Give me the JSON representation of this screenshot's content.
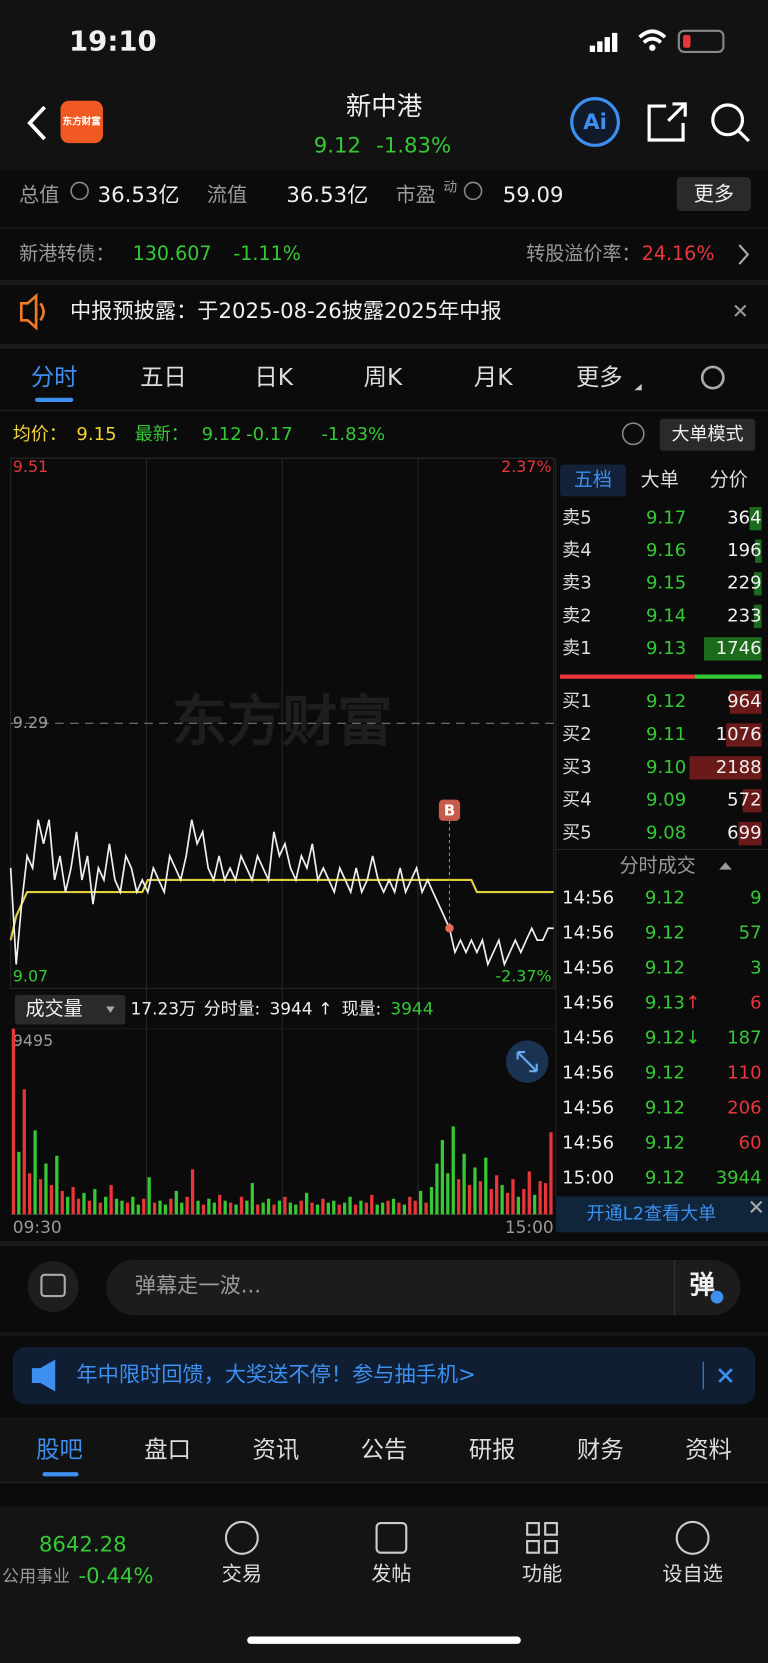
{
  "status": {
    "time": "19:10"
  },
  "header": {
    "logo": "东方财富",
    "title": "新中港",
    "price": "9.12",
    "change": "-1.83%",
    "ai": "Ai"
  },
  "stats": {
    "items": [
      {
        "label": "总值",
        "value": "36.53亿"
      },
      {
        "label": "流值",
        "value": "36.53亿"
      },
      {
        "label": "市盈",
        "sup": "动",
        "value": "59.09"
      }
    ],
    "more": "更多"
  },
  "bond": {
    "label": "新港转债：",
    "price": "130.607",
    "change": "-1.11%",
    "premium_label": "转股溢价率：",
    "premium": "24.16%"
  },
  "notice": {
    "text": "中报预披露：于2025-08-26披露2025年中报"
  },
  "tabs": [
    "分时",
    "五日",
    "日K",
    "周K",
    "月K",
    "更多"
  ],
  "chart_header": {
    "avg_label": "均价：",
    "avg": "9.15",
    "latest_label": "最新：",
    "latest": "9.12",
    "change": "-0.17",
    "pct": "-1.83%",
    "mode": "大单模式"
  },
  "chart_data": {
    "type": "line",
    "watermark": "东方财富",
    "ylim": [
      9.07,
      9.51
    ],
    "yticks": [
      9.07,
      9.29,
      9.51
    ],
    "pct_labels": [
      "2.37%",
      "-2.37%"
    ],
    "x_labels": [
      "09:30",
      "15:00"
    ],
    "annotation": "B",
    "price_color": "#f0f0f0",
    "avg_color": "#e2cf3c",
    "price_values": [
      9.17,
      9.09,
      9.14,
      9.18,
      9.17,
      9.21,
      9.19,
      9.21,
      9.16,
      9.18,
      9.15,
      9.17,
      9.2,
      9.16,
      9.18,
      9.14,
      9.17,
      9.16,
      9.19,
      9.16,
      9.15,
      9.18,
      9.17,
      9.15,
      9.16,
      9.15,
      9.17,
      9.16,
      9.15,
      9.18,
      9.17,
      9.16,
      9.18,
      9.21,
      9.19,
      9.2,
      9.17,
      9.16,
      9.18,
      9.16,
      9.17,
      9.16,
      9.18,
      9.17,
      9.16,
      9.18,
      9.17,
      9.16,
      9.2,
      9.18,
      9.19,
      9.17,
      9.16,
      9.18,
      9.17,
      9.19,
      9.16,
      9.17,
      9.16,
      9.15,
      9.17,
      9.16,
      9.15,
      9.17,
      9.15,
      9.16,
      9.18,
      9.16,
      9.15,
      9.16,
      9.15,
      9.17,
      9.15,
      9.16,
      9.17,
      9.15,
      9.16,
      9.15,
      9.14,
      9.13,
      9.12,
      9.1,
      9.11,
      9.1,
      9.11,
      9.1,
      9.11,
      9.09,
      9.1,
      9.11,
      9.09,
      9.1,
      9.11,
      9.1,
      9.11,
      9.12,
      9.11,
      9.11,
      9.12,
      9.12
    ],
    "avg_values": [
      9.11,
      9.13,
      9.14,
      9.15,
      9.15,
      9.15,
      9.15,
      9.15,
      9.15,
      9.15,
      9.15,
      9.15,
      9.15,
      9.15,
      9.15,
      9.15,
      9.15,
      9.15,
      9.15,
      9.15,
      9.15,
      9.15,
      9.15,
      9.15,
      9.15,
      9.16,
      9.16,
      9.16,
      9.16,
      9.16,
      9.16,
      9.16,
      9.16,
      9.16,
      9.16,
      9.16,
      9.16,
      9.16,
      9.16,
      9.16,
      9.16,
      9.16,
      9.16,
      9.16,
      9.16,
      9.16,
      9.16,
      9.16,
      9.16,
      9.16,
      9.16,
      9.16,
      9.16,
      9.16,
      9.16,
      9.16,
      9.16,
      9.16,
      9.16,
      9.16,
      9.16,
      9.16,
      9.16,
      9.16,
      9.16,
      9.16,
      9.16,
      9.16,
      9.16,
      9.16,
      9.16,
      9.16,
      9.16,
      9.16,
      9.16,
      9.16,
      9.16,
      9.16,
      9.16,
      9.16,
      9.16,
      9.16,
      9.16,
      9.16,
      9.16,
      9.15,
      9.15,
      9.15,
      9.15,
      9.15,
      9.15,
      9.15,
      9.15,
      9.15,
      9.15,
      9.15,
      9.15,
      9.15,
      9.15,
      9.15
    ],
    "volume": {
      "title": "成交量",
      "total": "17.23万",
      "minute_label": "分时量:",
      "minute": "3944",
      "arrow": "↑",
      "now_label": "现量:",
      "now": "3944",
      "ylim": [
        0,
        9495
      ],
      "yticks": [
        9495
      ],
      "up_color": "#e8363a",
      "down_color": "#35c935",
      "values": [
        9495,
        3200,
        6400,
        2100,
        4300,
        1800,
        2600,
        1500,
        3000,
        1200,
        900,
        1400,
        800,
        1100,
        700,
        1300,
        600,
        900,
        1500,
        800,
        700,
        600,
        900,
        500,
        800,
        1900,
        600,
        700,
        500,
        800,
        1200,
        600,
        900,
        2300,
        700,
        500,
        800,
        600,
        1000,
        700,
        600,
        500,
        900,
        700,
        1600,
        500,
        600,
        800,
        500,
        700,
        900,
        600,
        500,
        700,
        1100,
        600,
        500,
        800,
        600,
        700,
        500,
        600,
        900,
        500,
        700,
        600,
        1000,
        500,
        600,
        700,
        800,
        600,
        500,
        900,
        700,
        1200,
        600,
        1400,
        2600,
        3800,
        2100,
        4500,
        1800,
        3100,
        1500,
        2400,
        1700,
        2900,
        1300,
        2000,
        1500,
        1100,
        1800,
        900,
        1300,
        2200,
        1000,
        1700,
        1600,
        4200
      ]
    }
  },
  "order_book": {
    "tabs": [
      "五档",
      "大单",
      "分价"
    ],
    "asks": [
      [
        "卖5",
        "9.17",
        "364"
      ],
      [
        "卖4",
        "9.16",
        "196"
      ],
      [
        "卖3",
        "9.15",
        "229"
      ],
      [
        "卖2",
        "9.14",
        "233"
      ],
      [
        "卖1",
        "9.13",
        "1746"
      ]
    ],
    "bids": [
      [
        "买1",
        "9.12",
        "964"
      ],
      [
        "买2",
        "9.11",
        "1076"
      ],
      [
        "买3",
        "9.10",
        "2188"
      ],
      [
        "买4",
        "9.09",
        "572"
      ],
      [
        "买5",
        "9.08",
        "699"
      ]
    ]
  },
  "trades": {
    "title": "分时成交",
    "rows": [
      {
        "time": "14:56",
        "price": "9.12",
        "volume": "9",
        "color": "#35c935"
      },
      {
        "time": "14:56",
        "price": "9.12",
        "volume": "57",
        "color": "#35c935"
      },
      {
        "time": "14:56",
        "price": "9.12",
        "volume": "3",
        "color": "#35c935"
      },
      {
        "time": "14:56",
        "price": "9.13",
        "arrow": "↑",
        "arrow_color": "#e8363a",
        "volume": "6",
        "color": "#e8363a"
      },
      {
        "time": "14:56",
        "price": "9.12",
        "arrow": "↓",
        "arrow_color": "#35c935",
        "volume": "187",
        "color": "#35c935"
      },
      {
        "time": "14:56",
        "price": "9.12",
        "volume": "110",
        "color": "#e8363a"
      },
      {
        "time": "14:56",
        "price": "9.12",
        "volume": "206",
        "color": "#e8363a"
      },
      {
        "time": "14:56",
        "price": "9.12",
        "volume": "60",
        "color": "#e8363a"
      },
      {
        "time": "15:00",
        "price": "9.12",
        "volume": "3944",
        "color": "#35c935"
      }
    ],
    "l2": "开通L2查看大单"
  },
  "danmaku": {
    "placeholder": "弹幕走一波...",
    "button": "弹"
  },
  "promo": {
    "text": "年中限时回馈，大奖送不停！参与抽手机>"
  },
  "bottom_tabs": [
    "股吧",
    "盘口",
    "资讯",
    "公告",
    "研报",
    "财务",
    "资料"
  ],
  "nav": {
    "index_value": "8642.28",
    "index_name": "公用事业",
    "index_change": "-0.44%",
    "items": [
      "交易",
      "发帖",
      "功能",
      "设自选"
    ]
  }
}
